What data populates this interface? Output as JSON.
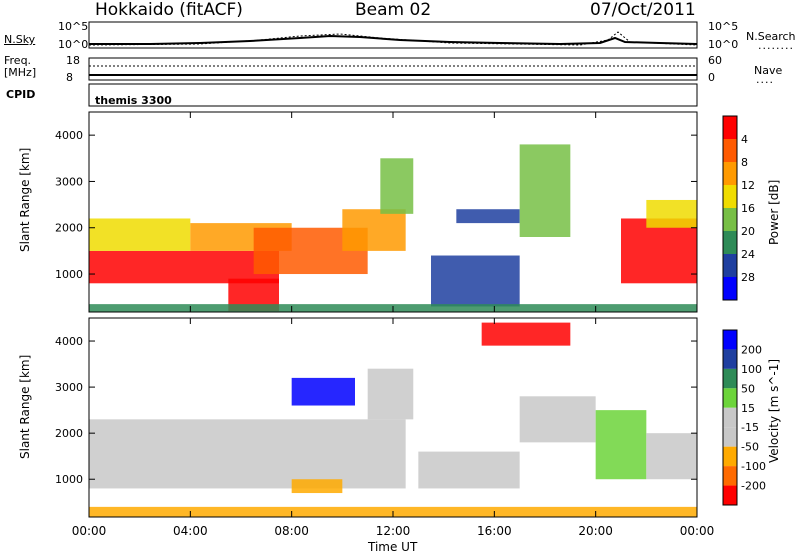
{
  "header": {
    "station": "Hokkaido (fitACF)",
    "beam": "Beam 02",
    "date": "07/Oct/2011"
  },
  "top_panels": {
    "nsky_label": "N.Sky",
    "nsky_ticks": [
      "10^5",
      "10^0"
    ],
    "nsearch_label": "N.Search",
    "freq_label": "Freq.",
    "freq_unit": "[MHz]",
    "freq_ticks": [
      "18",
      "8"
    ],
    "nave_label": "Nave",
    "nave_ticks": [
      "60",
      "0"
    ],
    "cpid_label": "CPID",
    "cpid_value": "themis 3300"
  },
  "colors": {
    "power": [
      "#0000ff",
      "#1f3fa0",
      "#2e8b57",
      "#77bf45",
      "#f0dc00",
      "#ff9a00",
      "#ff5a00",
      "#ff0000"
    ],
    "velocity": [
      "#ff0000",
      "#ff6a00",
      "#ffaa00",
      "#c8c8c8",
      "#c8c8c8",
      "#6cd43a",
      "#2e8b57",
      "#1f3fa0",
      "#0000ff"
    ]
  },
  "chart_data": [
    {
      "type": "heatmap",
      "title": "",
      "xlabel": "Time UT",
      "ylabel": "Slant Range [km]",
      "x_ticks": [
        "00:00",
        "04:00",
        "08:00",
        "12:00",
        "16:00",
        "20:00",
        "00:00"
      ],
      "xlim": [
        0,
        24
      ],
      "y_ticks": [
        1000,
        2000,
        3000,
        4000
      ],
      "ylim": [
        180,
        4500
      ],
      "colorbar_label": "Power [dB]",
      "colorbar_ticks": [
        4,
        8,
        12,
        16,
        20,
        24,
        28
      ],
      "regions": [
        {
          "t": [
            0.0,
            7.5
          ],
          "r": [
            800,
            1500
          ],
          "level": 7
        },
        {
          "t": [
            0.0,
            4.0
          ],
          "r": [
            1500,
            2200
          ],
          "level": 4
        },
        {
          "t": [
            4.0,
            8.0
          ],
          "r": [
            1500,
            2100
          ],
          "level": 5
        },
        {
          "t": [
            6.5,
            11.0
          ],
          "r": [
            1000,
            2000
          ],
          "level": 6
        },
        {
          "t": [
            10.0,
            12.5
          ],
          "r": [
            1500,
            2400
          ],
          "level": 5
        },
        {
          "t": [
            11.5,
            12.8
          ],
          "r": [
            2300,
            3500
          ],
          "level": 3
        },
        {
          "t": [
            5.5,
            7.5
          ],
          "r": [
            200,
            900
          ],
          "level": 7
        },
        {
          "t": [
            13.5,
            17.0
          ],
          "r": [
            300,
            1400
          ],
          "level": 1
        },
        {
          "t": [
            14.5,
            17.0
          ],
          "r": [
            2100,
            2400
          ],
          "level": 1
        },
        {
          "t": [
            17.0,
            19.0
          ],
          "r": [
            1800,
            3800
          ],
          "level": 3
        },
        {
          "t": [
            21.0,
            24.0
          ],
          "r": [
            800,
            2200
          ],
          "level": 7
        },
        {
          "t": [
            22.0,
            24.0
          ],
          "r": [
            2000,
            2600
          ],
          "level": 4
        },
        {
          "t": [
            0.0,
            24.0
          ],
          "r": [
            180,
            350
          ],
          "level": 2
        }
      ]
    },
    {
      "type": "heatmap",
      "title": "",
      "xlabel": "Time UT",
      "ylabel": "Slant Range [km]",
      "x_ticks": [
        "00:00",
        "04:00",
        "08:00",
        "12:00",
        "16:00",
        "20:00",
        "00:00"
      ],
      "xlim": [
        0,
        24
      ],
      "y_ticks": [
        1000,
        2000,
        3000,
        4000
      ],
      "ylim": [
        180,
        4500
      ],
      "colorbar_label": "Velocity [m s^-1]",
      "colorbar_ticks": [
        200,
        100,
        50,
        15,
        -15,
        -50,
        -100,
        -200
      ],
      "regions": [
        {
          "t": [
            0.0,
            12.5
          ],
          "r": [
            800,
            2300
          ],
          "level": 3
        },
        {
          "t": [
            11.0,
            12.8
          ],
          "r": [
            2300,
            3400
          ],
          "level": 3
        },
        {
          "t": [
            8.0,
            10.5
          ],
          "r": [
            2600,
            3200
          ],
          "level": 8
        },
        {
          "t": [
            13.0,
            17.0
          ],
          "r": [
            800,
            1600
          ],
          "level": 3
        },
        {
          "t": [
            17.0,
            20.0
          ],
          "r": [
            1800,
            2800
          ],
          "level": 3
        },
        {
          "t": [
            20.0,
            22.0
          ],
          "r": [
            1000,
            2500
          ],
          "level": 5
        },
        {
          "t": [
            22.0,
            24.0
          ],
          "r": [
            1000,
            2000
          ],
          "level": 3
        },
        {
          "t": [
            15.5,
            19.0
          ],
          "r": [
            3900,
            4400
          ],
          "level": 0
        },
        {
          "t": [
            8.0,
            10.0
          ],
          "r": [
            700,
            1000
          ],
          "level": 2
        },
        {
          "t": [
            0.0,
            24.0
          ],
          "r": [
            180,
            400
          ],
          "level": 2
        }
      ]
    }
  ]
}
